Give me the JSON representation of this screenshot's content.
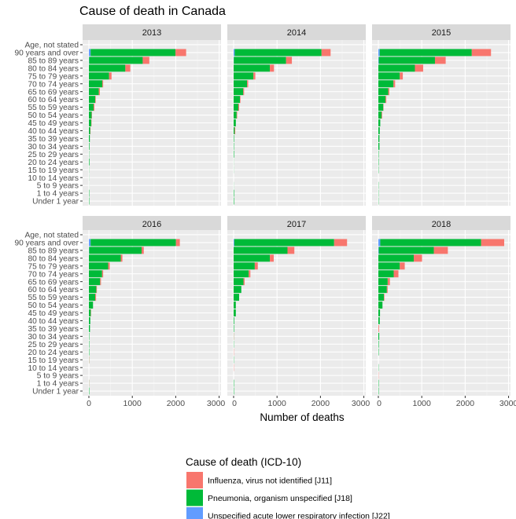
{
  "chart_data": {
    "type": "bar",
    "orientation": "horizontal",
    "stacked": true,
    "title": "Cause of death in Canada",
    "xlabel": "Number of deaths",
    "ylabel": "",
    "xlim": [
      -145,
      3044
    ],
    "xticks": [
      0,
      1000,
      2000,
      3000
    ],
    "grid": true,
    "legend_position": "bottom",
    "legend_title": "Cause of death (ICD-10)",
    "categories": [
      "Age, not stated",
      "90 years and over",
      "85 to 89 years",
      "80 to 84 years",
      "75 to 79 years",
      "70 to 74 years",
      "65 to 69 years",
      "60 to 64 years",
      "55 to 59 years",
      "50 to 54 years",
      "45 to 49 years",
      "40 to 44 years",
      "35 to 39 years",
      "30 to 34 years",
      "25 to 29 years",
      "20 to 24 years",
      "15 to 19 years",
      "10 to 14 years",
      "5 to 9 years",
      "1 to 4 years",
      "Under 1 year"
    ],
    "series_names": [
      "Influenza, virus not identified [J11]",
      "Pneumonia, organism unspecified [J18]",
      "Unspecified acute lower respiratory infection [J22]"
    ],
    "colors": [
      "#F8766D",
      "#00BA38",
      "#619CFF"
    ],
    "panels": [
      {
        "facet": "2013",
        "series": [
          {
            "name": "Influenza, virus not identified [J11]",
            "values": [
              0,
              245,
              152,
              114,
              57,
              19,
              25,
              12,
              19,
              7,
              6,
              6,
              0,
              0,
              0,
              0,
              0,
              0,
              0,
              0,
              0
            ]
          },
          {
            "name": "Pneumonia, organism unspecified [J18]",
            "values": [
              0,
              1955,
              1235,
              840,
              465,
              310,
              228,
              146,
              108,
              63,
              55,
              32,
              22,
              12,
              5,
              12,
              3,
              2,
              1,
              8,
              8
            ]
          },
          {
            "name": "Unspecified acute lower respiratory infection [J22]",
            "values": [
              0,
              40,
              5,
              0,
              0,
              0,
              0,
              0,
              0,
              0,
              0,
              0,
              0,
              0,
              0,
              0,
              0,
              0,
              0,
              0,
              0
            ]
          }
        ]
      },
      {
        "facet": "2014",
        "series": [
          {
            "name": "Influenza, virus not identified [J11]",
            "values": [
              0,
              209,
              133,
              95,
              44,
              25,
              19,
              12,
              19,
              12,
              0,
              13,
              0,
              0,
              0,
              0,
              0,
              0,
              0,
              0,
              0
            ]
          },
          {
            "name": "Pneumonia, organism unspecified [J18]",
            "values": [
              0,
              2000,
              1205,
              835,
              456,
              310,
              222,
              146,
              108,
              70,
              51,
              25,
              10,
              8,
              10,
              2,
              2,
              0,
              2,
              10,
              10
            ]
          },
          {
            "name": "Unspecified acute lower respiratory infection [J22]",
            "values": [
              0,
              25,
              4,
              0,
              0,
              0,
              0,
              0,
              0,
              0,
              0,
              0,
              0,
              0,
              0,
              0,
              0,
              0,
              0,
              0,
              0
            ]
          }
        ]
      },
      {
        "facet": "2015",
        "series": [
          {
            "name": "Influenza, virus not identified [J11]",
            "values": [
              0,
              443,
              247,
              190,
              69,
              38,
              25,
              19,
              6,
              13,
              0,
              0,
              0,
              0,
              0,
              0,
              0,
              0,
              0,
              0,
              0
            ]
          },
          {
            "name": "Pneumonia, organism unspecified [J18]",
            "values": [
              0,
              2120,
              1294,
              842,
              494,
              348,
              228,
              165,
              114,
              76,
              44,
              32,
              25,
              25,
              8,
              8,
              6,
              0,
              5,
              5,
              5
            ]
          },
          {
            "name": "Unspecified acute lower respiratory infection [J22]",
            "values": [
              0,
              32,
              10,
              0,
              0,
              0,
              0,
              0,
              0,
              0,
              0,
              0,
              0,
              0,
              0,
              0,
              0,
              0,
              0,
              0,
              0
            ]
          }
        ]
      },
      {
        "facet": "2016",
        "series": [
          {
            "name": "Influenza, virus not identified [J11]",
            "values": [
              0,
              89,
              50,
              38,
              38,
              25,
              19,
              13,
              19,
              0,
              6,
              0,
              0,
              0,
              0,
              0,
              4,
              0,
              0,
              3,
              0
            ]
          },
          {
            "name": "Pneumonia, organism unspecified [J18]",
            "values": [
              0,
              1966,
              1209,
              734,
              443,
              304,
              259,
              171,
              146,
              95,
              44,
              32,
              25,
              8,
              8,
              8,
              4,
              0,
              0,
              3,
              8
            ]
          },
          {
            "name": "Unspecified acute lower respiratory infection [J22]",
            "values": [
              0,
              40,
              5,
              0,
              0,
              0,
              0,
              0,
              0,
              0,
              0,
              0,
              0,
              0,
              0,
              0,
              0,
              0,
              0,
              0,
              0
            ]
          }
        ]
      },
      {
        "facet": "2017",
        "series": [
          {
            "name": "Influenza, virus not identified [J11]",
            "values": [
              0,
              298,
              158,
              89,
              70,
              38,
              25,
              0,
              0,
              0,
              0,
              0,
              0,
              4,
              0,
              5,
              0,
              5,
              0,
              0,
              0
            ]
          },
          {
            "name": "Pneumonia, organism unspecified [J18]",
            "values": [
              0,
              2300,
              1241,
              835,
              487,
              348,
              228,
              177,
              127,
              51,
              51,
              13,
              10,
              4,
              5,
              0,
              5,
              0,
              0,
              8,
              8
            ]
          },
          {
            "name": "Unspecified acute lower respiratory infection [J22]",
            "values": [
              0,
              15,
              0,
              0,
              0,
              0,
              0,
              0,
              0,
              0,
              0,
              0,
              0,
              0,
              0,
              0,
              0,
              0,
              0,
              0,
              0
            ]
          }
        ]
      },
      {
        "facet": "2018",
        "series": [
          {
            "name": "Influenza, virus not identified [J11]",
            "values": [
              0,
              532,
              323,
              190,
              114,
              108,
              51,
              19,
              12,
              0,
              0,
              0,
              15,
              0,
              0,
              0,
              0,
              0,
              5,
              0,
              0
            ]
          },
          {
            "name": "Pneumonia, organism unspecified [J18]",
            "values": [
              0,
              2323,
              1268,
              816,
              494,
              354,
              215,
              196,
              127,
              95,
              38,
              32,
              0,
              20,
              10,
              8,
              0,
              5,
              0,
              8,
              8
            ]
          },
          {
            "name": "Unspecified acute lower respiratory infection [J22]",
            "values": [
              0,
              44,
              10,
              0,
              0,
              0,
              0,
              0,
              0,
              0,
              0,
              0,
              0,
              0,
              0,
              0,
              0,
              0,
              0,
              0,
              0
            ]
          }
        ]
      }
    ]
  }
}
